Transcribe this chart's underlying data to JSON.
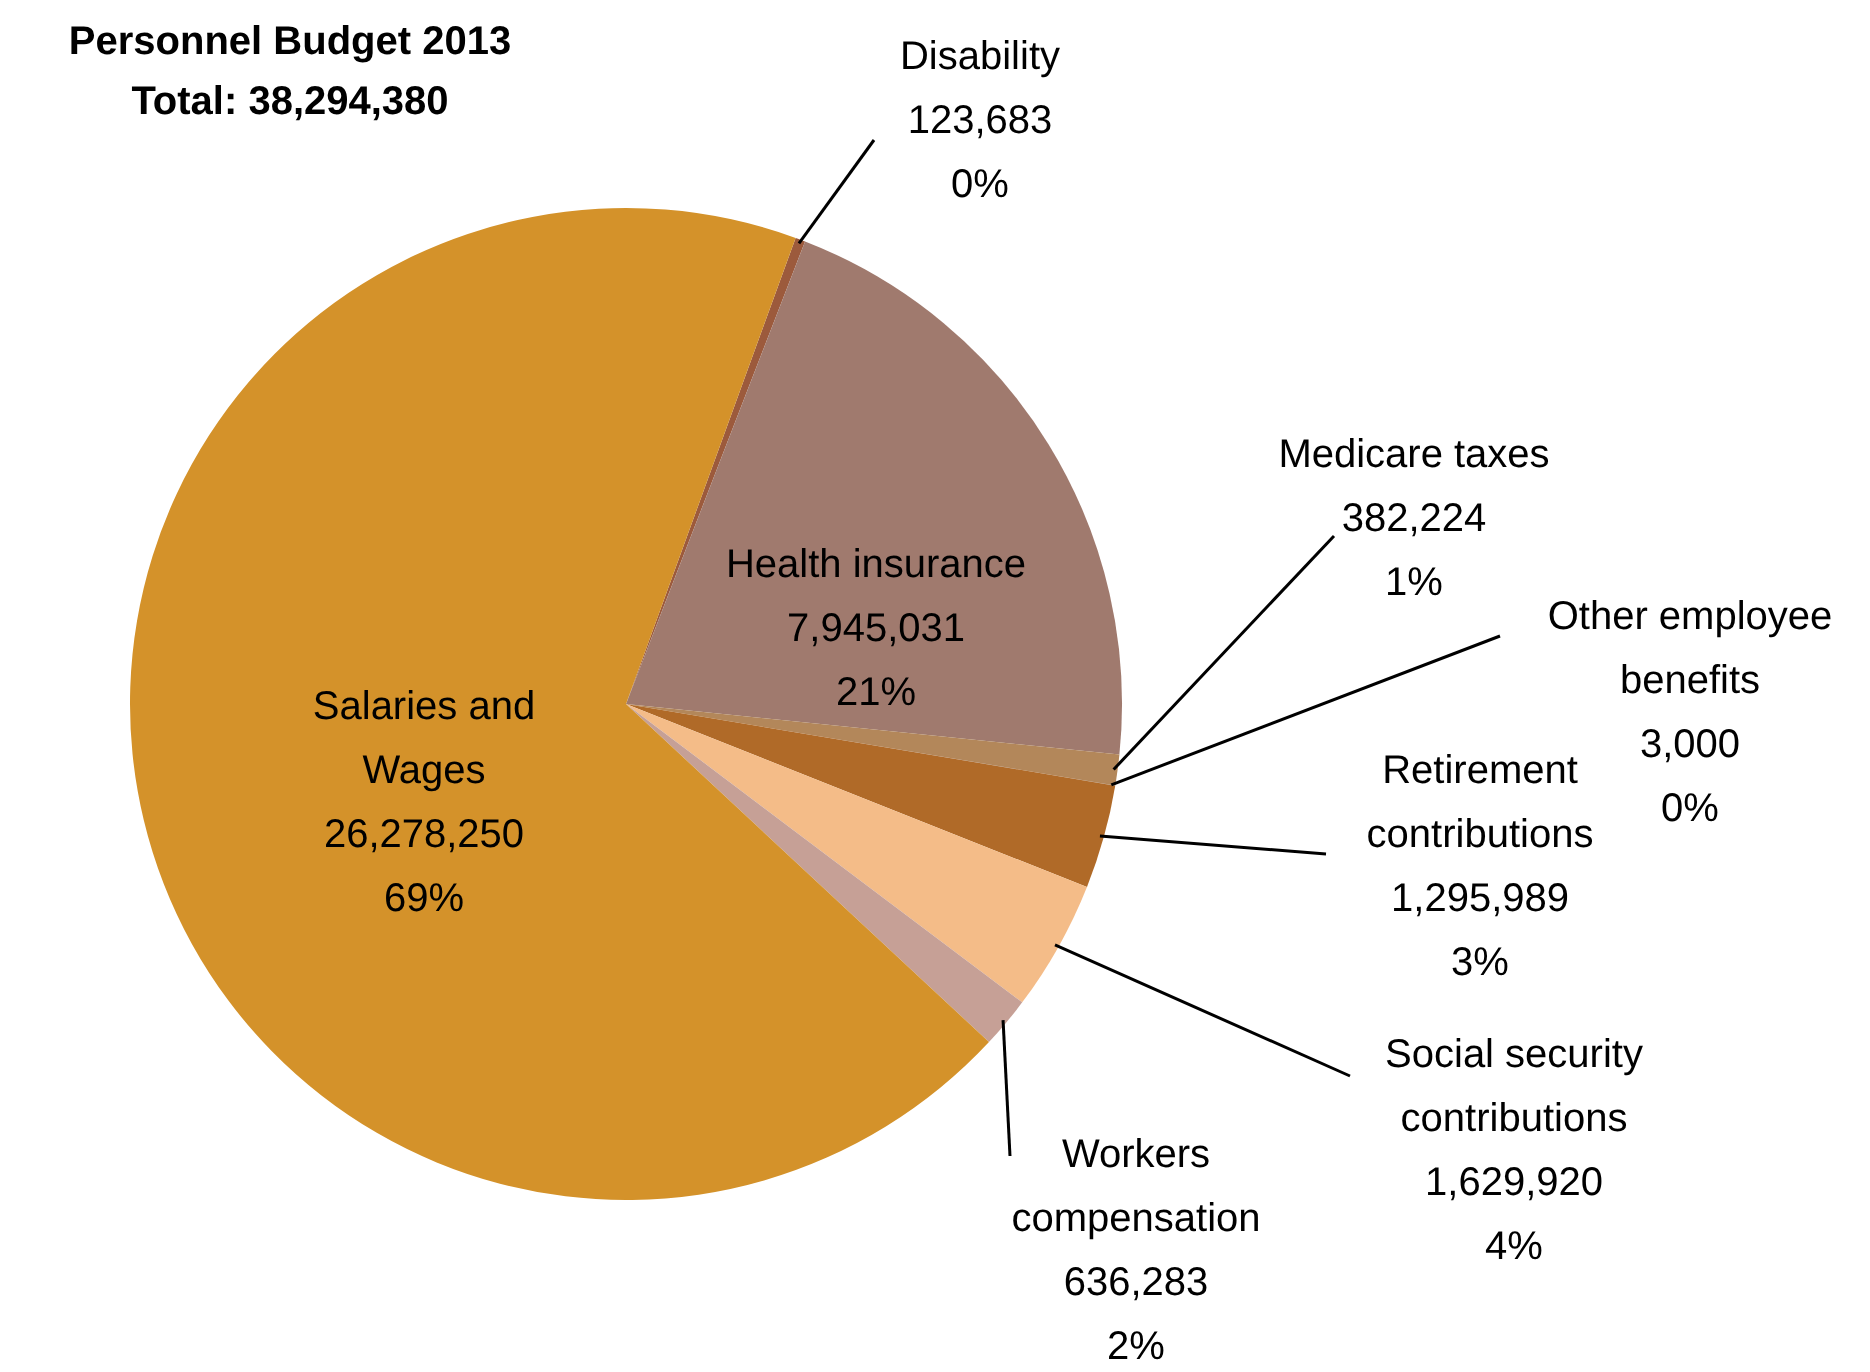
{
  "chart_data": {
    "type": "pie",
    "title": "Personnel Budget 2013",
    "subtitle": "Total: 38,294,380",
    "categories": [
      "Disability",
      "Health insurance",
      "Medicare taxes",
      "Other employee benefits",
      "Retirement contributions",
      "Social security contributions",
      "Workers compensation",
      "Salaries and Wages"
    ],
    "values": [
      123683,
      7945031,
      382224,
      3000,
      1295989,
      1629920,
      636283,
      26278250
    ],
    "colors": [
      "#9c5a3c",
      "#a07a6e",
      "#b3875a",
      "#8a6a50",
      "#b06a28",
      "#f4bc88",
      "#c6a096",
      "#d4922a"
    ],
    "value_labels": [
      "123,683\n0%",
      "7,945,031\n21%",
      "382,224\n1%",
      "3,000\n0%",
      "1,295,989\n3%",
      "1,629,920\n4%",
      "636,283\n2%",
      "26,278,250\n69%"
    ],
    "legend": false
  }
}
